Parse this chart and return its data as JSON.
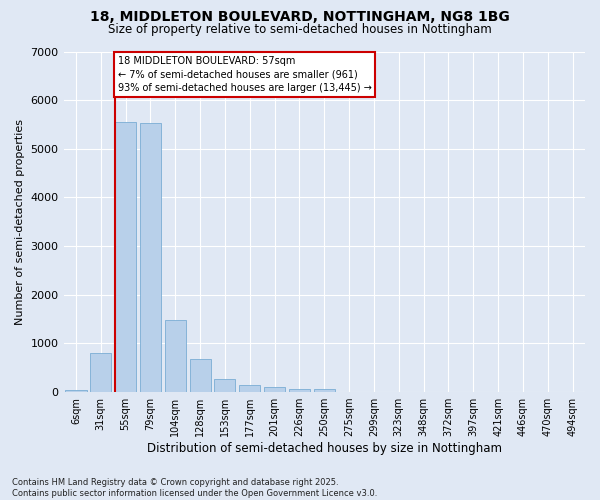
{
  "title_line1": "18, MIDDLETON BOULEVARD, NOTTINGHAM, NG8 1BG",
  "title_line2": "Size of property relative to semi-detached houses in Nottingham",
  "xlabel": "Distribution of semi-detached houses by size in Nottingham",
  "ylabel": "Number of semi-detached properties",
  "categories": [
    "6sqm",
    "31sqm",
    "55sqm",
    "79sqm",
    "104sqm",
    "128sqm",
    "153sqm",
    "177sqm",
    "201sqm",
    "226sqm",
    "250sqm",
    "275sqm",
    "299sqm",
    "323sqm",
    "348sqm",
    "372sqm",
    "397sqm",
    "421sqm",
    "446sqm",
    "470sqm",
    "494sqm"
  ],
  "values": [
    50,
    800,
    5550,
    5540,
    1480,
    670,
    260,
    145,
    100,
    70,
    60,
    0,
    0,
    0,
    0,
    0,
    0,
    0,
    0,
    0,
    0
  ],
  "bar_color": "#b8d0ea",
  "bar_edge_color": "#7aadd4",
  "vline_x": 2,
  "vline_color": "#cc0000",
  "annotation_text": "18 MIDDLETON BOULEVARD: 57sqm\n← 7% of semi-detached houses are smaller (961)\n93% of semi-detached houses are larger (13,445) →",
  "annotation_box_facecolor": "#ffffff",
  "annotation_box_edgecolor": "#cc0000",
  "ylim": [
    0,
    7000
  ],
  "yticks": [
    0,
    1000,
    2000,
    3000,
    4000,
    5000,
    6000,
    7000
  ],
  "background_color": "#e0e8f4",
  "grid_color": "#ffffff",
  "footer_line1": "Contains HM Land Registry data © Crown copyright and database right 2025.",
  "footer_line2": "Contains public sector information licensed under the Open Government Licence v3.0."
}
